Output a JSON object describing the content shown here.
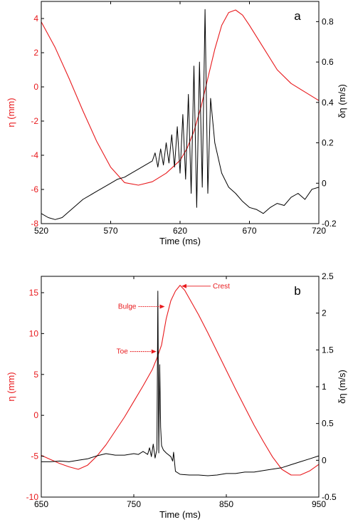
{
  "colors": {
    "eta": "#e8191c",
    "signal": "#000000",
    "axis": "#000000"
  },
  "chart_data": [
    {
      "type": "line",
      "panel_label": "a",
      "xlabel": "Time (ms)",
      "ylabel_left": "η (mm)",
      "ylabel_right": "δη (m/s)",
      "xlim": [
        520,
        720
      ],
      "ylim_left": [
        -8,
        5
      ],
      "ylim_right": [
        -0.2,
        0.9
      ],
      "xticks": [
        "520",
        "570",
        "620",
        "670",
        "720"
      ],
      "xtick_values": [
        520,
        570,
        620,
        670,
        720
      ],
      "yticks_left": [
        "-8",
        "-6",
        "-4",
        "-2",
        "0",
        "2",
        "4"
      ],
      "ytick_values_left": [
        -8,
        -6,
        -4,
        -2,
        0,
        2,
        4
      ],
      "yticks_right": [
        "-0.2",
        "0",
        "0.2",
        "0.4",
        "0.6",
        "0.8"
      ],
      "ytick_values_right": [
        -0.2,
        0,
        0.2,
        0.4,
        0.6,
        0.8
      ],
      "series": [
        {
          "axis": "left",
          "color": "#e8191c",
          "x": [
            520,
            530,
            540,
            550,
            560,
            570,
            580,
            590,
            600,
            610,
            620,
            625,
            630,
            635,
            640,
            645,
            650,
            655,
            660,
            665,
            670,
            680,
            690,
            700,
            710,
            720
          ],
          "y": [
            3.8,
            2.3,
            0.5,
            -1.4,
            -3.2,
            -4.7,
            -5.6,
            -5.75,
            -5.55,
            -5.05,
            -4.3,
            -3.6,
            -2.6,
            -1.2,
            0.5,
            2.2,
            3.6,
            4.35,
            4.5,
            4.2,
            3.6,
            2.3,
            1.0,
            0.2,
            -0.3,
            -0.8
          ]
        },
        {
          "axis": "right",
          "color": "#000000",
          "x": [
            520,
            525,
            530,
            535,
            540,
            545,
            550,
            555,
            560,
            565,
            570,
            575,
            580,
            585,
            590,
            595,
            600,
            602,
            604,
            606,
            608,
            610,
            612,
            614,
            616,
            618,
            620,
            622,
            624,
            626,
            628,
            630,
            632,
            634,
            636,
            638,
            640,
            642,
            645,
            650,
            655,
            660,
            665,
            670,
            675,
            680,
            685,
            690,
            695,
            700,
            705,
            710,
            715,
            720
          ],
          "y": [
            -0.15,
            -0.17,
            -0.18,
            -0.17,
            -0.14,
            -0.11,
            -0.08,
            -0.06,
            -0.04,
            -0.02,
            0.0,
            0.02,
            0.03,
            0.05,
            0.07,
            0.09,
            0.11,
            0.15,
            0.08,
            0.17,
            0.09,
            0.2,
            0.1,
            0.24,
            0.08,
            0.28,
            0.05,
            0.34,
            0.02,
            0.44,
            -0.05,
            0.58,
            -0.12,
            0.6,
            -0.02,
            0.86,
            -0.05,
            0.42,
            0.2,
            0.05,
            -0.02,
            -0.05,
            -0.09,
            -0.12,
            -0.13,
            -0.15,
            -0.12,
            -0.1,
            -0.11,
            -0.07,
            -0.05,
            -0.08,
            -0.03,
            -0.02
          ]
        }
      ]
    },
    {
      "type": "line",
      "panel_label": "b",
      "xlabel": "Time (ms)",
      "ylabel_left": "η (mm)",
      "ylabel_right": "δη (m/s)",
      "xlim": [
        650,
        950
      ],
      "ylim_left": [
        -10,
        17
      ],
      "ylim_right": [
        -0.5,
        2.5
      ],
      "xticks": [
        "650",
        "750",
        "850",
        "950"
      ],
      "xtick_values": [
        650,
        750,
        850,
        950
      ],
      "yticks_left": [
        "-10",
        "-5",
        "0",
        "5",
        "10",
        "15"
      ],
      "ytick_values_left": [
        -10,
        -5,
        0,
        5,
        10,
        15
      ],
      "yticks_right": [
        "-0.5",
        "0",
        "0.5",
        "1",
        "1.5",
        "2",
        "2.5"
      ],
      "ytick_values_right": [
        -0.5,
        0,
        0.5,
        1,
        1.5,
        2,
        2.5
      ],
      "annotations": [
        {
          "text": "Bulge",
          "x": 785,
          "y": 13.3,
          "side": "left"
        },
        {
          "text": "Crest",
          "x": 800,
          "y": 15.8,
          "side": "right"
        },
        {
          "text": "Toe",
          "x": 776,
          "y": 7.8,
          "side": "left"
        }
      ],
      "series": [
        {
          "axis": "left",
          "color": "#e8191c",
          "x": [
            650,
            660,
            670,
            680,
            690,
            700,
            710,
            720,
            730,
            740,
            750,
            760,
            770,
            775,
            780,
            785,
            790,
            795,
            800,
            805,
            810,
            820,
            830,
            840,
            850,
            860,
            870,
            880,
            890,
            900,
            910,
            920,
            930,
            940,
            950
          ],
          "y": [
            -4.9,
            -5.4,
            -5.9,
            -6.3,
            -6.6,
            -6.1,
            -5.0,
            -3.6,
            -1.9,
            -0.2,
            1.7,
            3.6,
            5.6,
            7.0,
            8.6,
            11.8,
            14.0,
            15.2,
            15.9,
            15.3,
            14.3,
            12.3,
            10.1,
            7.8,
            5.5,
            3.2,
            1.0,
            -1.2,
            -3.2,
            -5.1,
            -6.6,
            -7.3,
            -7.3,
            -6.8,
            -6.0
          ]
        },
        {
          "axis": "right",
          "color": "#000000",
          "x": [
            650,
            660,
            670,
            680,
            690,
            700,
            710,
            720,
            730,
            740,
            750,
            755,
            760,
            765,
            767,
            769,
            771,
            773,
            775,
            776,
            777,
            778,
            779,
            780,
            782,
            785,
            790,
            792,
            793,
            795,
            800,
            810,
            820,
            830,
            840,
            850,
            860,
            870,
            880,
            890,
            900,
            910,
            920,
            930,
            940,
            950
          ],
          "y": [
            -0.02,
            -0.02,
            -0.01,
            -0.02,
            0.0,
            0.02,
            0.06,
            0.09,
            0.07,
            0.07,
            0.09,
            0.08,
            0.12,
            0.08,
            0.17,
            0.05,
            0.22,
            0.03,
            0.15,
            2.3,
            0.1,
            1.3,
            0.45,
            0.2,
            0.14,
            0.1,
            0.05,
            -0.01,
            0.11,
            -0.15,
            -0.19,
            -0.2,
            -0.2,
            -0.21,
            -0.2,
            -0.18,
            -0.18,
            -0.16,
            -0.16,
            -0.14,
            -0.12,
            -0.1,
            -0.06,
            -0.02,
            0.02,
            0.06
          ]
        }
      ]
    }
  ]
}
